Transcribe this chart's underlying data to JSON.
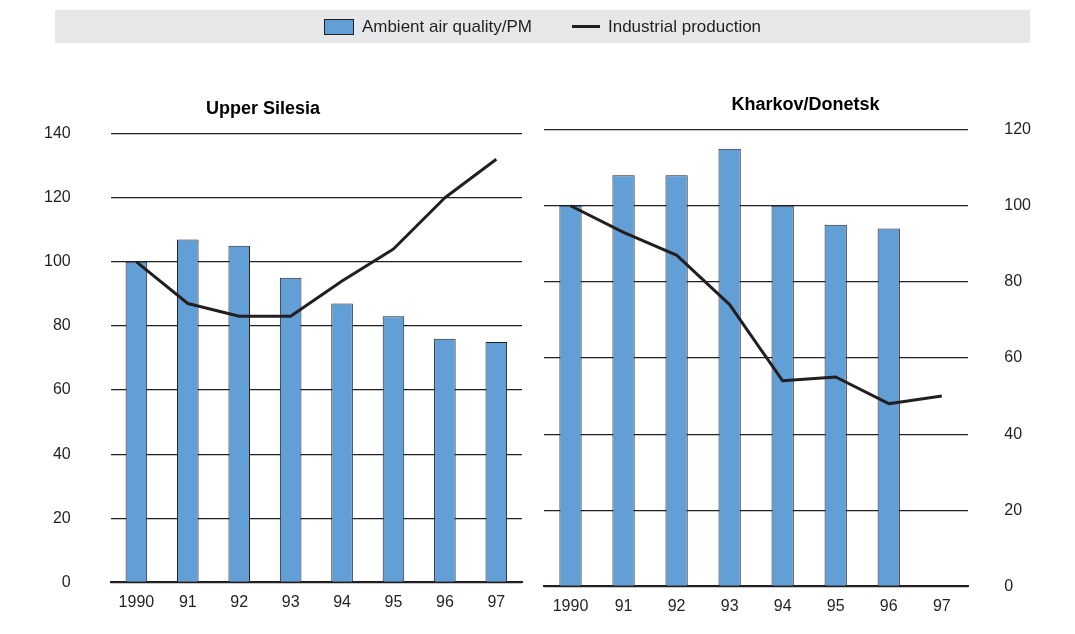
{
  "chart_data": [
    {
      "type": "bar",
      "title": "Upper Silesia",
      "categories": [
        "1990",
        "91",
        "92",
        "93",
        "94",
        "95",
        "96",
        "97"
      ],
      "series": [
        {
          "name": "Ambient air quality/PM",
          "color": "#629fd6",
          "values": [
            100,
            107,
            105,
            95,
            87,
            83,
            76,
            75
          ]
        },
        {
          "name": "Industrial production",
          "type": "line",
          "color": "#231f20",
          "values": [
            100,
            87,
            83,
            83,
            94,
            104,
            120,
            132
          ]
        }
      ],
      "ylim": [
        0,
        140
      ],
      "yticks": [
        0,
        20,
        40,
        60,
        80,
        100,
        120,
        140
      ],
      "grid": "y",
      "legend": "top",
      "marker": "none"
    },
    {
      "type": "bar",
      "title": "Kharkov/Donetsk",
      "categories": [
        "1990",
        "91",
        "92",
        "93",
        "94",
        "95",
        "96",
        "97"
      ],
      "series": [
        {
          "color": "#629fd6",
          "axis": "y2",
          "values": [
            100,
            108,
            108,
            115,
            100,
            95,
            94,
            null
          ]
        },
        {
          "type": "line",
          "color": "#231f20",
          "axis": "y2",
          "values": [
            100,
            93,
            87,
            74,
            54,
            55,
            48,
            50
          ]
        }
      ],
      "y2lim": [
        0,
        120
      ],
      "y2ticks": [
        0,
        20,
        40,
        60,
        80,
        100,
        120
      ],
      "grid": "y",
      "marker": "none"
    }
  ]
}
